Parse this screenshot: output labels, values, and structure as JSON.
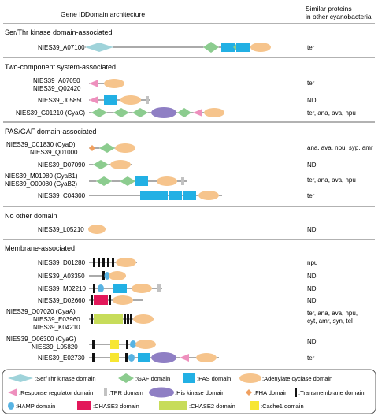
{
  "header": {
    "gene_id": "Gene ID",
    "domain_architecture": "Domain architecture",
    "similar_line1": "Similar proteins",
    "similar_line2": "in other cyanobacteria"
  },
  "colors": {
    "kinase": "#9fd3da",
    "gaf": "#8ccc8f",
    "pas": "#22b0e4",
    "cyclase": "#f6c48c",
    "rr": "#ee8fbd",
    "tpr": "#c2c2c2",
    "hiskinase": "#8f7fc4",
    "fha": "#f0a060",
    "tm": "#111111",
    "hamp": "#58b3e3",
    "chase3": "#e2185a",
    "chase2": "#c7dc5a",
    "cache1": "#f7e632"
  },
  "sections": [
    {
      "title": "Ser/Thr kinase domain-associated",
      "entries": [
        {
          "ids": [
            "NIES39_A07100"
          ],
          "similar": [
            "ter"
          ]
        }
      ]
    },
    {
      "title": "Two-component system-associated",
      "entries": [
        {
          "ids": [
            "NIES39_A07050",
            "NIES39_Q02420"
          ],
          "similar": [
            "ter"
          ]
        },
        {
          "ids": [
            "NIES39_J05850"
          ],
          "similar": [
            "ND"
          ]
        },
        {
          "ids": [
            "NIES39_G01210 (CyaC)"
          ],
          "similar": [
            "ter, ana, ava, npu"
          ]
        }
      ]
    },
    {
      "title": "PAS/GAF domain-associated",
      "entries": [
        {
          "ids": [
            "NIES39_C01830 (CyaD)",
            "NIES39_Q01000"
          ],
          "similar": [
            "ana, ava, npu, syp, amr"
          ]
        },
        {
          "ids": [
            "NIES39_D07090"
          ],
          "similar": [
            "ND"
          ]
        },
        {
          "ids": [
            "NIES39_M01980 (CyaB1)",
            "NIES39_O00080 (CyaB2)"
          ],
          "similar": [
            "ter, ana, ava, npu"
          ]
        },
        {
          "ids": [
            "NIES39_C04300"
          ],
          "similar": [
            "ter"
          ]
        }
      ]
    },
    {
      "title": "No other domain",
      "entries": [
        {
          "ids": [
            "NIES39_L05210"
          ],
          "similar": [
            "ND"
          ]
        }
      ]
    },
    {
      "title": "Membrane-associated",
      "entries": [
        {
          "ids": [
            "NIES39_D01280"
          ],
          "similar": [
            "npu"
          ]
        },
        {
          "ids": [
            "NIES39_A03350"
          ],
          "similar": [
            "ND"
          ]
        },
        {
          "ids": [
            "NIES39_M02210"
          ],
          "similar": [
            "ND"
          ]
        },
        {
          "ids": [
            "NIES39_D02660"
          ],
          "similar": [
            "ND"
          ]
        },
        {
          "ids": [
            "NIES39_O07020 (CyaA)",
            "NIES39_E03960",
            "NIES39_K04210"
          ],
          "similar": [
            "ter, ana, ava, npu,",
            "cyt, amr, syn, tel"
          ]
        },
        {
          "ids": [
            "NIES39_O06300 (CyaG)",
            "NIES39_L05820"
          ],
          "similar": [
            "ND"
          ]
        },
        {
          "ids": [
            "NIES39_E02730"
          ],
          "similar": [
            "ter"
          ]
        }
      ]
    }
  ],
  "legend": [
    ":Ser/Thr kinase domain",
    ":GAF domain",
    ":PAS domain",
    ":Adenylate cyclase domain",
    ":Response regulator domain",
    ":TPR domain",
    ":His kinase domain",
    ":FHA domain",
    ":Transmembrane domain",
    ":HAMP domain",
    ":CHASE3 domain",
    ":CHASE2 domain",
    ":Cache1 domain"
  ]
}
